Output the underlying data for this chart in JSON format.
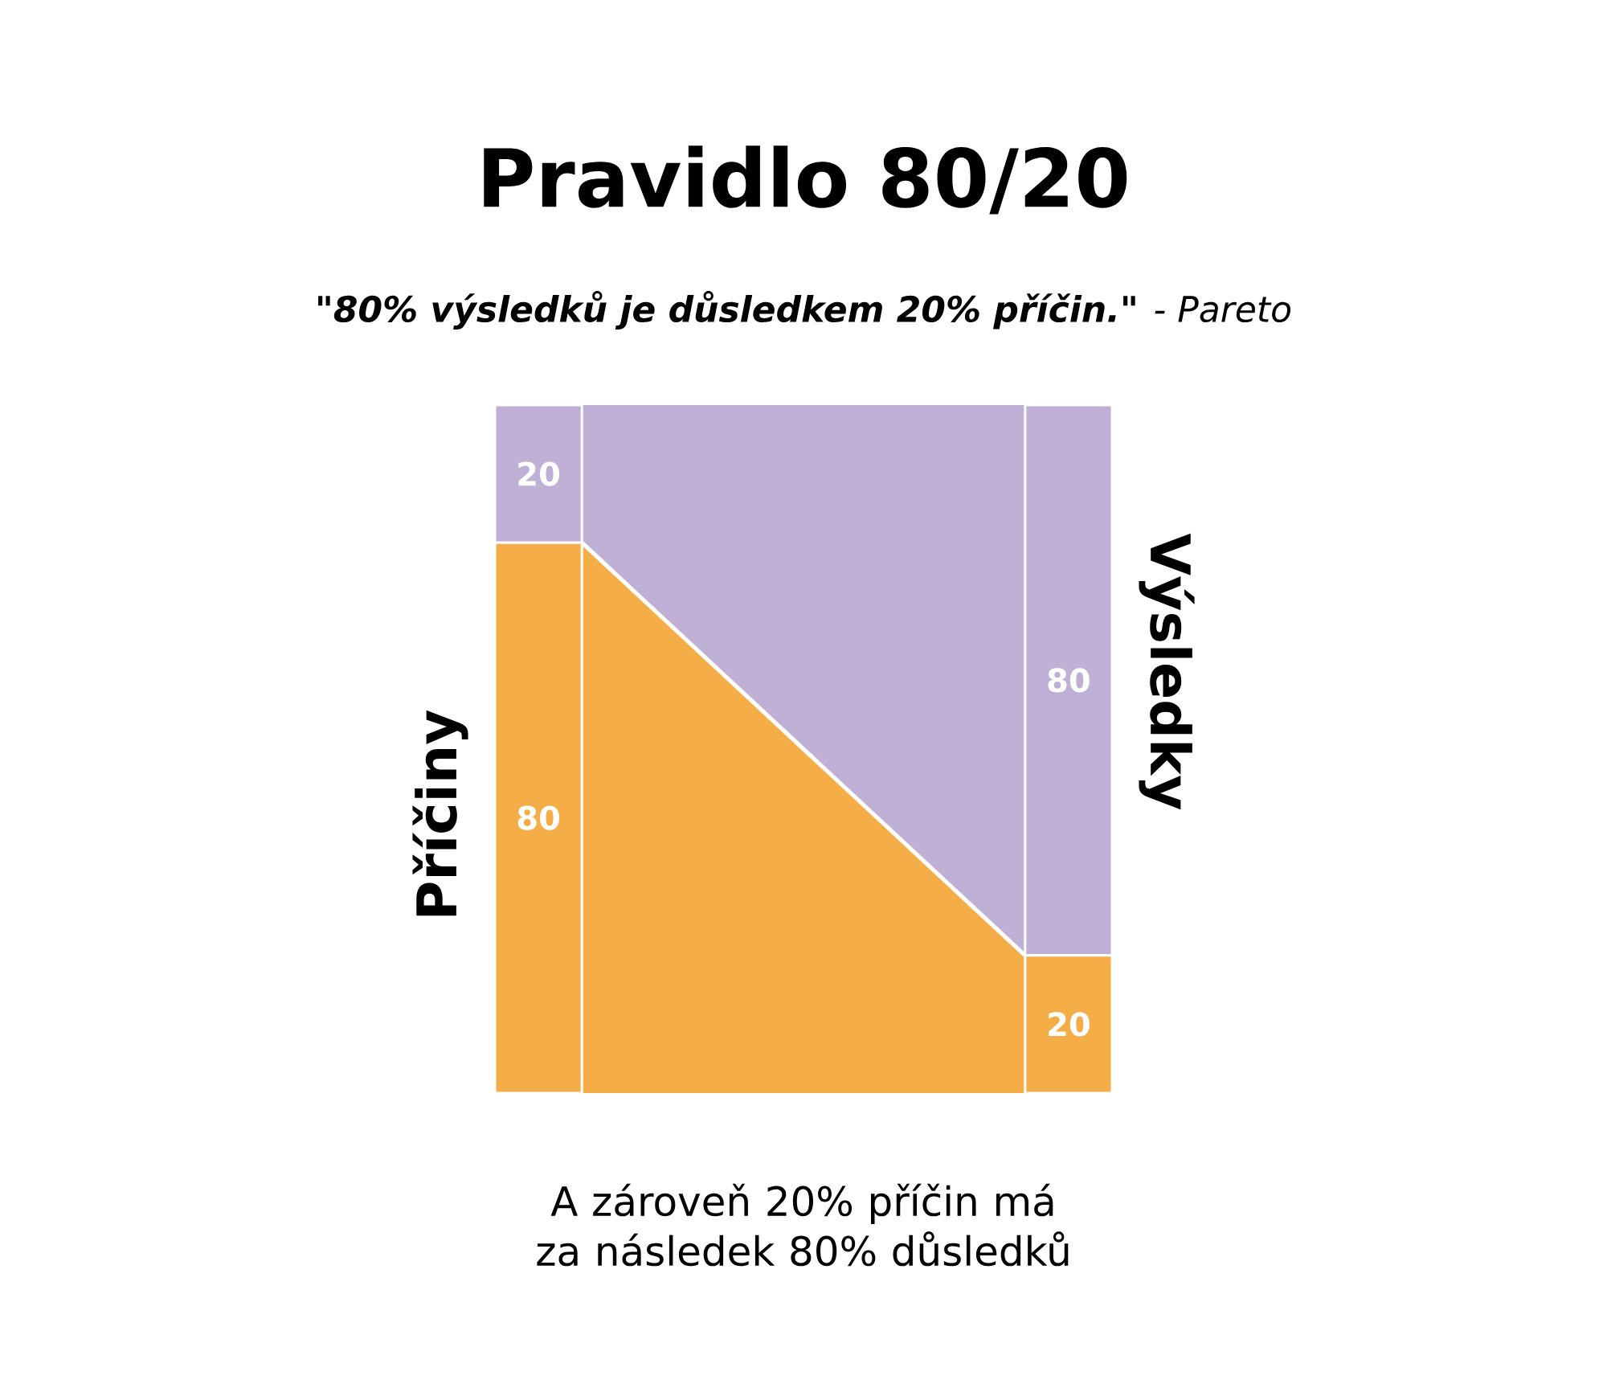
{
  "chart_data": {
    "type": "bar",
    "stacked": true,
    "data_labels": true,
    "title": "Pravidlo 80/20",
    "subtitle": "**\"80% výsledků je důsledkem 20% příčin.\"** - Pareto",
    "categories": [
      "Příčiny",
      "Výsledky"
    ],
    "series": [
      {
        "color": "#f5ad47",
        "values": [
          80,
          20
        ]
      },
      {
        "color": "#c0b0d5",
        "values": [
          20,
          80
        ]
      }
    ],
    "annotations": [
      "A zároveň 20% příčin má za následek 80% důsledků"
    ]
  }
}
